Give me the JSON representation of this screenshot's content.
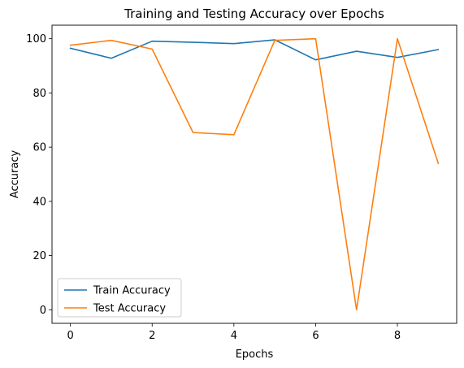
{
  "chart_data": {
    "type": "line",
    "title": "Training and Testing Accuracy over Epochs",
    "xlabel": "Epochs",
    "ylabel": "Accuracy",
    "x": [
      0,
      1,
      2,
      3,
      4,
      5,
      6,
      7,
      8,
      9
    ],
    "xlim": [
      -0.45,
      9.45
    ],
    "ylim": [
      -5,
      105
    ],
    "xticks": [
      0,
      2,
      4,
      6,
      8
    ],
    "yticks": [
      0,
      20,
      40,
      60,
      80,
      100
    ],
    "grid": false,
    "legend_position": "lower-left",
    "series": [
      {
        "name": "Train Accuracy",
        "color": "#1f77b4",
        "values": [
          96.5,
          92.8,
          99.1,
          98.7,
          98.2,
          99.6,
          92.2,
          95.4,
          93.1,
          96.0
        ]
      },
      {
        "name": "Test Accuracy",
        "color": "#ff7f0e",
        "values": [
          97.6,
          99.4,
          96.2,
          65.4,
          64.6,
          99.4,
          100.0,
          0.0,
          100.0,
          54.0
        ]
      }
    ]
  }
}
